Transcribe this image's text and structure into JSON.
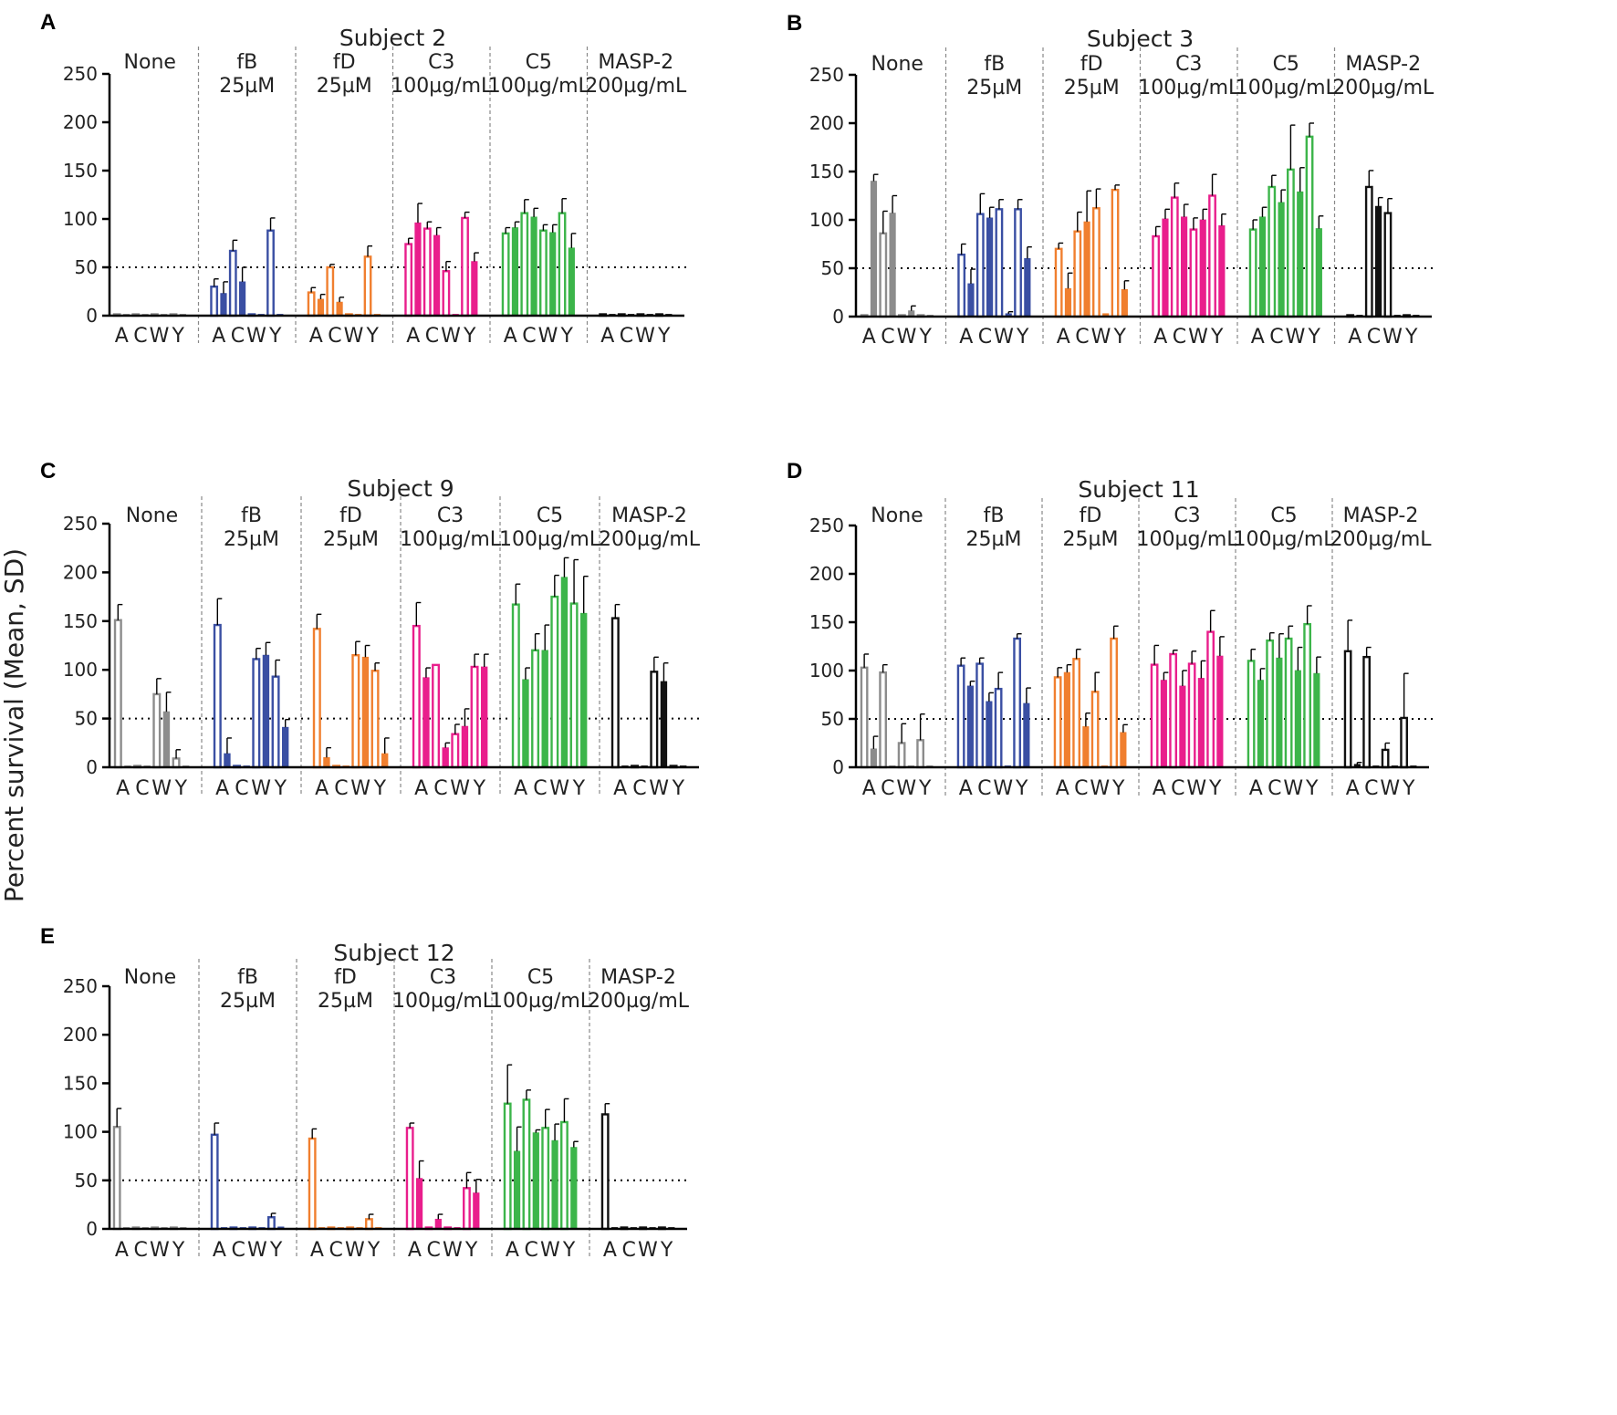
{
  "ylabel": "Percent survival (Mean,  SD)",
  "ylim": [
    0,
    250
  ],
  "yticks": [
    0,
    50,
    100,
    150,
    200,
    250
  ],
  "threshold": 50,
  "category_letters": [
    "A",
    "C",
    "W",
    "Y"
  ],
  "groups": [
    {
      "name": "None",
      "dose": ""
    },
    {
      "name": "fB",
      "dose": "25µM"
    },
    {
      "name": "fD",
      "dose": "25µM"
    },
    {
      "name": "C3",
      "dose": "100µg/mL"
    },
    {
      "name": "C5",
      "dose": "100µg/mL"
    },
    {
      "name": "MASP-2",
      "dose": "200µg/mL"
    }
  ],
  "colors": {
    "None": "#8c8c8c",
    "fB": "#3a4fa3",
    "fD": "#f07f2f",
    "C3": "#e91e8c",
    "C5": "#3cb54a",
    "MASP-2": "#111111"
  },
  "bar_note": "8 bars per group in order A(open), A(filled), C(open), C(filled), W(open), W(filled), Y(open), Y(filled); values are percent survival; errors are SD",
  "chart_data": [
    {
      "panel": "A",
      "type": "bar",
      "title": "Subject 2",
      "ylabel": "Percent survival (Mean,  SD)",
      "series": [
        {
          "group": "None",
          "values": [
            1,
            1,
            1,
            1,
            1,
            1,
            1,
            1
          ],
          "errors": [
            0,
            0,
            0,
            0,
            0,
            0,
            0,
            0
          ]
        },
        {
          "group": "fB",
          "values": [
            30,
            23,
            67,
            35,
            1,
            1,
            88,
            1
          ],
          "errors": [
            8,
            12,
            11,
            15,
            0,
            0,
            13,
            0
          ]
        },
        {
          "group": "fD",
          "values": [
            24,
            17,
            50,
            14,
            1,
            1,
            61,
            1
          ],
          "errors": [
            5,
            5,
            3,
            5,
            0,
            0,
            11,
            0
          ]
        },
        {
          "group": "C3",
          "values": [
            74,
            96,
            90,
            83,
            46,
            1,
            101,
            56
          ],
          "errors": [
            6,
            20,
            7,
            8,
            10,
            0,
            6,
            9
          ]
        },
        {
          "group": "C5",
          "values": [
            85,
            91,
            106,
            102,
            88,
            86,
            106,
            70
          ],
          "errors": [
            6,
            6,
            14,
            9,
            6,
            8,
            15,
            15
          ]
        },
        {
          "group": "MASP-2",
          "values": [
            1,
            1,
            1,
            1,
            1,
            1,
            1,
            1
          ],
          "errors": [
            0,
            0,
            0,
            0,
            0,
            0,
            0,
            0
          ]
        }
      ]
    },
    {
      "panel": "B",
      "type": "bar",
      "title": "Subject 3",
      "ylabel": "Percent survival (Mean,  SD)",
      "series": [
        {
          "group": "None",
          "values": [
            1,
            140,
            86,
            107,
            1,
            6,
            1,
            1
          ],
          "errors": [
            0,
            7,
            23,
            18,
            0,
            5,
            0,
            0
          ]
        },
        {
          "group": "fB",
          "values": [
            64,
            34,
            106,
            102,
            111,
            3,
            111,
            60
          ],
          "errors": [
            11,
            15,
            21,
            11,
            10,
            2,
            10,
            12
          ]
        },
        {
          "group": "fD",
          "values": [
            70,
            29,
            88,
            98,
            112,
            3,
            131,
            28
          ],
          "errors": [
            6,
            16,
            20,
            32,
            20,
            0,
            5,
            9
          ]
        },
        {
          "group": "C3",
          "values": [
            83,
            101,
            123,
            103,
            90,
            100,
            125,
            94
          ],
          "errors": [
            10,
            10,
            15,
            13,
            12,
            11,
            22,
            12
          ]
        },
        {
          "group": "C5",
          "values": [
            90,
            103,
            134,
            118,
            152,
            129,
            186,
            91
          ],
          "errors": [
            10,
            10,
            12,
            13,
            46,
            25,
            14,
            13
          ]
        },
        {
          "group": "MASP-2",
          "values": [
            1,
            1,
            134,
            114,
            107,
            1,
            1,
            1
          ],
          "errors": [
            0,
            0,
            17,
            9,
            15,
            0,
            0,
            0
          ]
        }
      ]
    },
    {
      "panel": "C",
      "type": "bar",
      "title": "Subject 9",
      "ylabel": "Percent survival (Mean,  SD)",
      "series": [
        {
          "group": "None",
          "values": [
            151,
            1,
            1,
            1,
            75,
            57,
            9,
            1
          ],
          "errors": [
            16,
            0,
            0,
            0,
            16,
            20,
            9,
            0
          ]
        },
        {
          "group": "fB",
          "values": [
            146,
            14,
            1,
            1,
            111,
            115,
            93,
            41
          ],
          "errors": [
            27,
            16,
            0,
            0,
            11,
            13,
            17,
            8
          ]
        },
        {
          "group": "fD",
          "values": [
            142,
            10,
            1,
            1,
            115,
            113,
            99,
            14
          ],
          "errors": [
            15,
            10,
            0,
            0,
            14,
            12,
            8,
            16
          ]
        },
        {
          "group": "C3",
          "values": [
            145,
            92,
            105,
            20,
            34,
            42,
            103,
            103
          ],
          "errors": [
            24,
            10,
            0,
            5,
            10,
            18,
            13,
            13
          ]
        },
        {
          "group": "C5",
          "values": [
            167,
            90,
            120,
            120,
            175,
            195,
            168,
            158
          ],
          "errors": [
            21,
            12,
            17,
            26,
            22,
            20,
            45,
            38
          ]
        },
        {
          "group": "MASP-2",
          "values": [
            153,
            1,
            1,
            1,
            98,
            88,
            1,
            1
          ],
          "errors": [
            14,
            0,
            0,
            0,
            15,
            19,
            0,
            0
          ]
        }
      ]
    },
    {
      "panel": "D",
      "type": "bar",
      "title": "Subject 11",
      "ylabel": "Percent survival (Mean,  SD)",
      "series": [
        {
          "group": "None",
          "values": [
            103,
            19,
            98,
            1,
            25,
            1,
            28,
            1
          ],
          "errors": [
            14,
            13,
            8,
            0,
            20,
            0,
            27,
            0
          ]
        },
        {
          "group": "fB",
          "values": [
            105,
            84,
            107,
            68,
            81,
            1,
            133,
            66
          ],
          "errors": [
            8,
            5,
            6,
            9,
            17,
            0,
            5,
            16
          ]
        },
        {
          "group": "fD",
          "values": [
            93,
            98,
            112,
            42,
            78,
            1,
            133,
            36
          ],
          "errors": [
            10,
            8,
            10,
            14,
            20,
            0,
            13,
            8
          ]
        },
        {
          "group": "C3",
          "values": [
            106,
            90,
            117,
            84,
            107,
            92,
            140,
            115
          ],
          "errors": [
            20,
            8,
            4,
            16,
            13,
            18,
            22,
            20
          ]
        },
        {
          "group": "C5",
          "values": [
            110,
            90,
            131,
            113,
            133,
            100,
            148,
            97
          ],
          "errors": [
            12,
            12,
            8,
            25,
            13,
            24,
            19,
            17
          ]
        },
        {
          "group": "MASP-2",
          "values": [
            120,
            3,
            114,
            1,
            18,
            1,
            51,
            1
          ],
          "errors": [
            32,
            2,
            10,
            0,
            7,
            0,
            46,
            0
          ]
        }
      ]
    },
    {
      "panel": "E",
      "type": "bar",
      "title": "Subject 12",
      "ylabel": "Percent survival (Mean,  SD)",
      "series": [
        {
          "group": "None",
          "values": [
            105,
            1,
            1,
            1,
            1,
            1,
            1,
            1
          ],
          "errors": [
            19,
            0,
            0,
            0,
            0,
            0,
            0,
            0
          ]
        },
        {
          "group": "fB",
          "values": [
            97,
            1,
            1,
            1,
            1,
            1,
            12,
            2
          ],
          "errors": [
            12,
            0,
            0,
            0,
            0,
            0,
            4,
            0
          ]
        },
        {
          "group": "fD",
          "values": [
            93,
            1,
            1,
            1,
            1,
            1,
            10,
            1
          ],
          "errors": [
            10,
            0,
            0,
            0,
            0,
            0,
            5,
            0
          ]
        },
        {
          "group": "C3",
          "values": [
            104,
            52,
            1,
            10,
            1,
            1,
            42,
            37
          ],
          "errors": [
            5,
            18,
            0,
            5,
            0,
            0,
            16,
            14
          ]
        },
        {
          "group": "C5",
          "values": [
            129,
            80,
            133,
            99,
            104,
            91,
            110,
            84
          ],
          "errors": [
            40,
            25,
            10,
            3,
            19,
            17,
            24,
            6
          ]
        },
        {
          "group": "MASP-2",
          "values": [
            118,
            1,
            1,
            1,
            1,
            1,
            1,
            1
          ],
          "errors": [
            11,
            0,
            0,
            0,
            0,
            0,
            0,
            0
          ]
        }
      ]
    }
  ]
}
